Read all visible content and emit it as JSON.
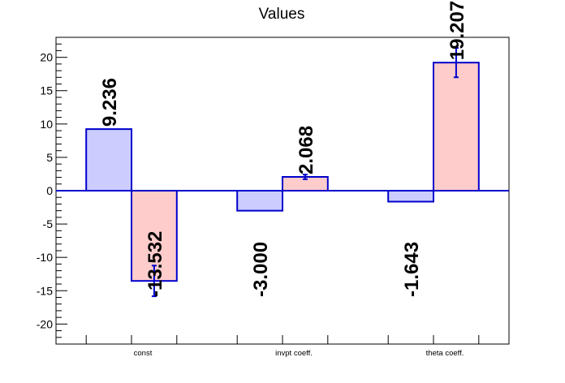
{
  "chart_data": {
    "type": "bar",
    "title": "Values",
    "categories": [
      "const",
      "invpt coeff.",
      "theta coeff."
    ],
    "series": [
      {
        "values": [
          9.236,
          -3.0,
          -1.643
        ],
        "errors": [
          0,
          0,
          0
        ],
        "labels": [
          "9.236",
          "-3.000",
          "-1.643"
        ]
      },
      {
        "values": [
          -13.532,
          2.068,
          19.207
        ],
        "errors": [
          2.3,
          0.35,
          2.2
        ],
        "labels": [
          "-13.532",
          "2.068",
          "19.207"
        ]
      }
    ],
    "ylim": [
      -23,
      23
    ],
    "yticks": [
      -20,
      -15,
      -10,
      -5,
      0,
      5,
      10,
      15,
      20
    ],
    "xlabel": "",
    "ylabel": "",
    "grid": false,
    "colors": {
      "series1_fill": "#ccccff",
      "series2_fill": "#ffcccc",
      "outline": "#0000cc",
      "zero_line": "#0000cc",
      "axis": "#000000"
    }
  }
}
